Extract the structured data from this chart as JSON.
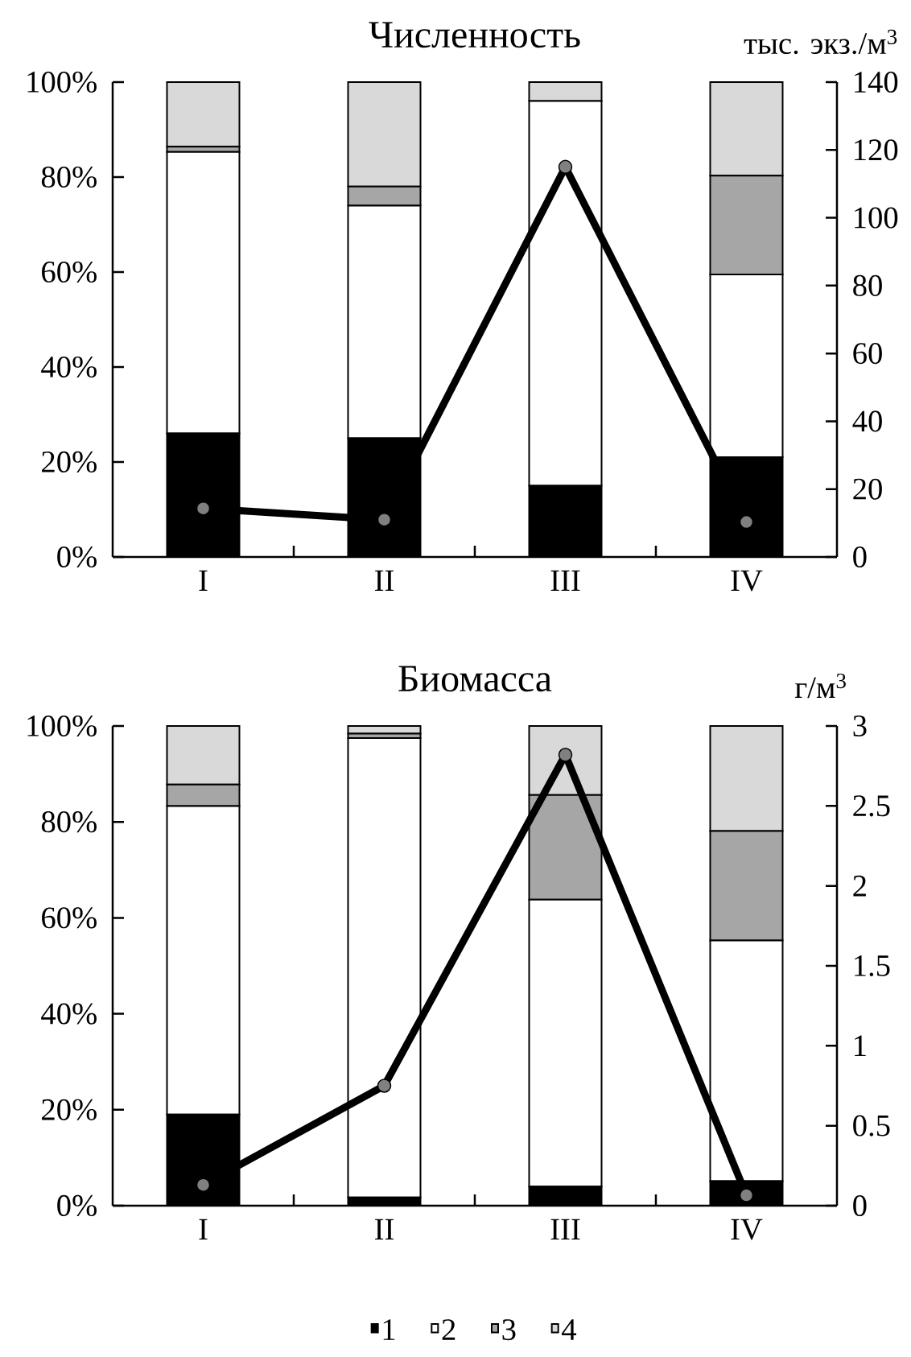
{
  "chart_data": [
    {
      "type": "bar",
      "title": "Численность",
      "y2label": "тыс. экз./м$^{3}$",
      "stacked": true,
      "legend": false,
      "marker": "circle",
      "categories": [
        "I",
        "II",
        "III",
        "IV"
      ],
      "series": [
        {
          "color": "#000000",
          "values": [
            26,
            25,
            15,
            21
          ]
        },
        {
          "color": "#ffffff",
          "values": [
            59.3,
            49,
            81,
            38.5
          ]
        },
        {
          "color": "#a6a6a6",
          "values": [
            1.1,
            4,
            0,
            20.8
          ]
        },
        {
          "color": "#d9d9d9",
          "values": [
            13.6,
            22,
            4,
            19.7
          ]
        },
        {
          "type": "line",
          "axis": "y2",
          "color": "#000000",
          "values": [
            14.3,
            11,
            115,
            10.3
          ]
        }
      ],
      "ylim": [
        0,
        100
      ],
      "yticks": [
        {
          "value": 0,
          "label": "0%"
        },
        {
          "value": 20,
          "label": "20%"
        },
        {
          "value": 40,
          "label": "40%"
        },
        {
          "value": 60,
          "label": "60%"
        },
        {
          "value": 80,
          "label": "80%"
        },
        {
          "value": 100,
          "label": "100%"
        }
      ],
      "y2lim": [
        0,
        140
      ],
      "y2ticks": [
        0,
        20,
        40,
        60,
        80,
        100,
        120,
        140
      ]
    },
    {
      "type": "bar",
      "title": "Биомасса",
      "y2label": "г/м$^{3}$",
      "stacked": true,
      "legend": "bottom",
      "marker": "circle",
      "categories": [
        "I",
        "II",
        "III",
        "IV"
      ],
      "series": [
        {
          "name": "1",
          "color": "#000000",
          "values": [
            19,
            1.7,
            4,
            5.1
          ]
        },
        {
          "name": "2",
          "color": "#ffffff",
          "values": [
            64.3,
            95.8,
            59.8,
            50.2
          ]
        },
        {
          "name": "3",
          "color": "#a6a6a6",
          "values": [
            4.5,
            0.9,
            21.8,
            22.8
          ]
        },
        {
          "name": "4",
          "color": "#d9d9d9",
          "values": [
            12.2,
            1.6,
            14.4,
            21.9
          ]
        },
        {
          "type": "line",
          "axis": "y2",
          "color": "#000000",
          "values": [
            0.13,
            0.75,
            2.82,
            0.065
          ]
        }
      ],
      "ylim": [
        0,
        100
      ],
      "yticks": [
        {
          "value": 0,
          "label": "0%"
        },
        {
          "value": 20,
          "label": "20%"
        },
        {
          "value": 40,
          "label": "40%"
        },
        {
          "value": 60,
          "label": "60%"
        },
        {
          "value": 80,
          "label": "80%"
        },
        {
          "value": 100,
          "label": "100%"
        }
      ],
      "y2lim": [
        0,
        3
      ],
      "y2ticks": [
        0,
        0.5,
        1,
        1.5,
        2,
        2.5,
        3
      ]
    }
  ]
}
